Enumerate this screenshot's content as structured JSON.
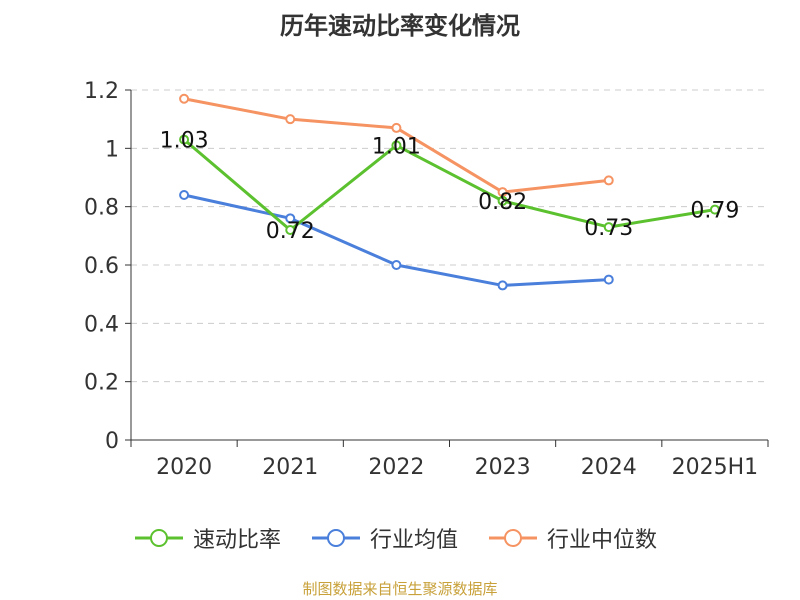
{
  "title": "历年速动比率变化情况",
  "source": "制图数据来自恒生聚源数据库",
  "chart_data": {
    "type": "line",
    "categories": [
      "2020",
      "2021",
      "2022",
      "2023",
      "2024",
      "2025H1"
    ],
    "ylim": [
      0,
      1.2
    ],
    "yticks": [
      "0",
      "0.2",
      "0.4",
      "0.6",
      "0.8",
      "1",
      "1.2"
    ],
    "grid": true,
    "legend_position": "bottom",
    "series": [
      {
        "name": "速动比率",
        "color": "#5cc12e",
        "values": [
          1.03,
          0.72,
          1.01,
          0.82,
          0.73,
          0.79
        ],
        "labels": [
          "1.03",
          "0.72",
          "1.01",
          "0.82",
          "0.73",
          "0.79"
        ]
      },
      {
        "name": "行业均值",
        "color": "#4a7fdb",
        "values": [
          0.84,
          0.76,
          0.6,
          0.53,
          0.55,
          null
        ]
      },
      {
        "name": "行业中位数",
        "color": "#f69362",
        "values": [
          1.17,
          1.1,
          1.07,
          0.85,
          0.89,
          null
        ]
      }
    ]
  }
}
